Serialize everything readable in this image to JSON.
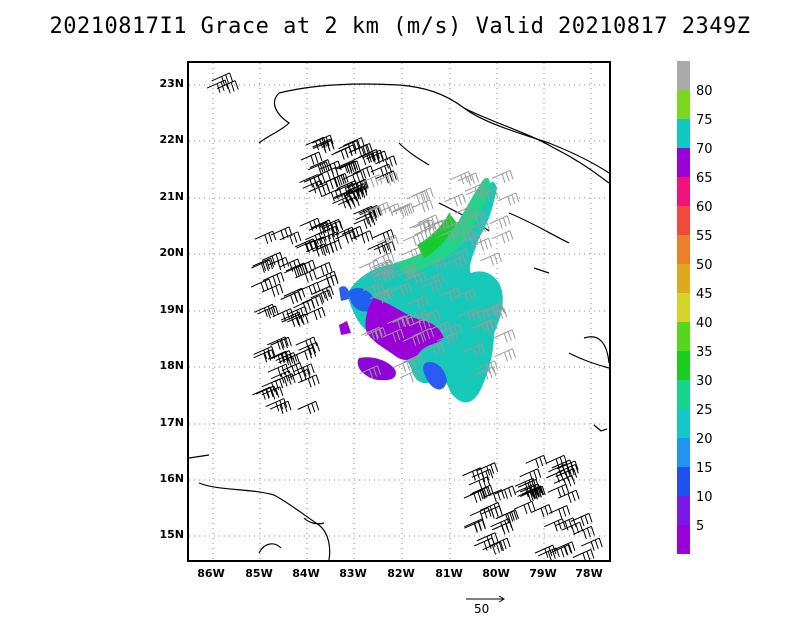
{
  "title": "20210817I1 Grace at 2 km (m/s) Valid 20210817 2349Z",
  "map": {
    "lat_labels": [
      "23N",
      "22N",
      "21N",
      "20N",
      "19N",
      "18N",
      "17N",
      "16N",
      "15N"
    ],
    "lon_labels": [
      "86W",
      "85W",
      "84W",
      "83W",
      "82W",
      "81W",
      "80W",
      "79W",
      "78W"
    ],
    "lon_range": [
      -86.5,
      -77.6
    ],
    "lat_range": [
      14.5,
      23.3
    ],
    "gridlines": "dotted"
  },
  "colorbar": {
    "labels": [
      "5",
      "10",
      "15",
      "20",
      "25",
      "30",
      "35",
      "40",
      "45",
      "50",
      "55",
      "60",
      "65",
      "70",
      "75",
      "80"
    ],
    "colors": [
      "#9a00d8",
      "#7a18e6",
      "#2050f0",
      "#1f95f0",
      "#14c8c8",
      "#18d38f",
      "#1ccc1c",
      "#56d61c",
      "#d4d42a",
      "#e0a81c",
      "#ec8028",
      "#f04a3c",
      "#f0127a",
      "#9a00d8",
      "#10c8c0",
      "#7cd81c",
      "#aaaaaa"
    ]
  },
  "reference_vector": {
    "label": "50"
  }
}
